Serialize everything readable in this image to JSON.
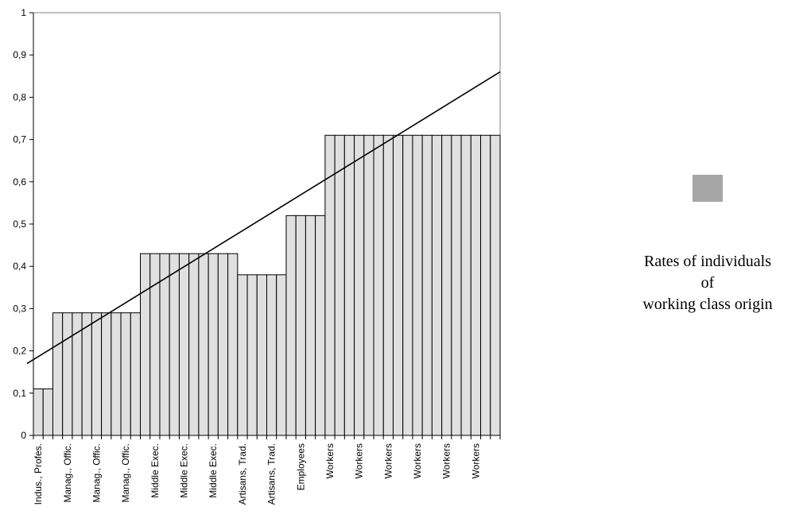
{
  "chart_data": {
    "type": "bar",
    "categories": [
      "Indus., Profes.",
      "Indus., Profes.",
      "Manag., Offic.",
      "Manag., Offic.",
      "Manag., Offic.",
      "Manag., Offic.",
      "Manag., Offic.",
      "Manag., Offic.",
      "Manag., Offic.",
      "Manag., Offic.",
      "Manag., Offic.",
      "Middle Exec.",
      "Middle Exec.",
      "Middle Exec.",
      "Middle Exec.",
      "Middle Exec.",
      "Middle Exec.",
      "Middle Exec.",
      "Middle Exec.",
      "Middle Exec.",
      "Middle Exec.",
      "Artisans, Trad.",
      "Artisans, Trad.",
      "Artisans, Trad.",
      "Artisans, Trad.",
      "Artisans, Trad.",
      "Employees",
      "Employees",
      "Employees",
      "Employees",
      "Workers",
      "Workers",
      "Workers",
      "Workers",
      "Workers",
      "Workers",
      "Workers",
      "Workers",
      "Workers",
      "Workers",
      "Workers",
      "Workers",
      "Workers",
      "Workers",
      "Workers",
      "Workers",
      "Workers",
      "Workers"
    ],
    "values": [
      0.11,
      0.11,
      0.29,
      0.29,
      0.29,
      0.29,
      0.29,
      0.29,
      0.29,
      0.29,
      0.29,
      0.43,
      0.43,
      0.43,
      0.43,
      0.43,
      0.43,
      0.43,
      0.43,
      0.43,
      0.43,
      0.38,
      0.38,
      0.38,
      0.38,
      0.38,
      0.52,
      0.52,
      0.52,
      0.52,
      0.71,
      0.71,
      0.71,
      0.71,
      0.71,
      0.71,
      0.71,
      0.71,
      0.71,
      0.71,
      0.71,
      0.71,
      0.71,
      0.71,
      0.71,
      0.71,
      0.71,
      0.71
    ],
    "y_ticks": [
      "0",
      "0,1",
      "0,2",
      "0,3",
      "0,4",
      "0,5",
      "0,6",
      "0,7",
      "0,8",
      "0,9",
      "1"
    ],
    "ylim": [
      0,
      1
    ],
    "trend_line": {
      "start": 0.17,
      "end": 0.86
    },
    "series": [
      {
        "name": "Rates of individuals\nof\nworking class origin",
        "color": "#a6a6a6"
      }
    ],
    "bar_fill": "#e0e0e0",
    "legend_position": "right",
    "grid": false
  }
}
